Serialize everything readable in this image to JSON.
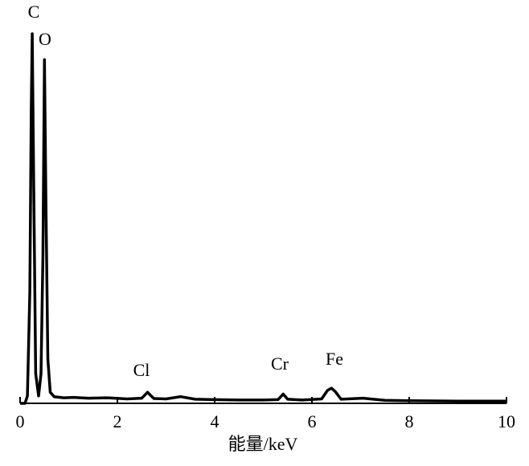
{
  "chart_data": {
    "type": "line",
    "x_label": "能量/keV",
    "annotations": [
      "C",
      "O",
      "Cl",
      "Cr",
      "Fe"
    ],
    "x": [
      0.0,
      0.1,
      0.15,
      0.2,
      0.23,
      0.25,
      0.28,
      0.32,
      0.38,
      0.43,
      0.47,
      0.5,
      0.53,
      0.57,
      0.62,
      0.7,
      0.9,
      1.1,
      1.4,
      1.8,
      2.2,
      2.5,
      2.62,
      2.75,
      3.0,
      3.3,
      3.6,
      4.0,
      4.5,
      5.0,
      5.3,
      5.41,
      5.5,
      5.8,
      6.2,
      6.32,
      6.4,
      6.48,
      6.6,
      7.05,
      7.5,
      8.0,
      9.0,
      10.0
    ],
    "values": [
      0,
      0,
      2,
      30,
      80,
      100,
      60,
      8,
      2,
      8,
      40,
      93,
      55,
      12,
      3,
      1.8,
      1.5,
      1.6,
      1.4,
      1.5,
      1.2,
      1.4,
      3,
      1.3,
      1.2,
      1.8,
      1.1,
      1.0,
      0.9,
      0.9,
      1.0,
      2.5,
      1.1,
      0.9,
      1.2,
      3.5,
      4.1,
      3.2,
      1.1,
      1.4,
      0.8,
      0.7,
      0.6,
      0.6
    ],
    "color": "#000000",
    "xlim": [
      0,
      10
    ],
    "xticks": [
      0,
      2,
      4,
      6,
      8,
      10
    ],
    "ylim": [
      0,
      100
    ]
  }
}
